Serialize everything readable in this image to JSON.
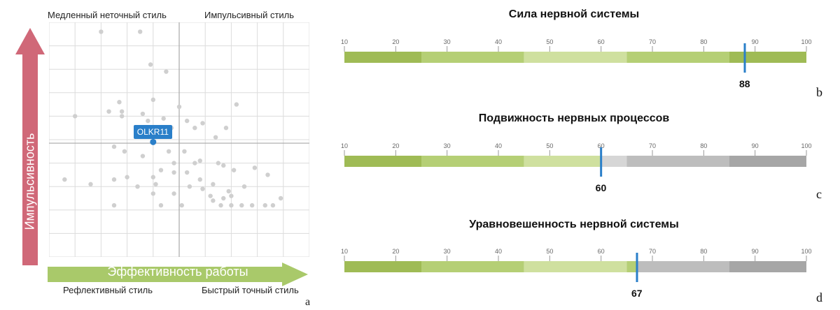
{
  "chart_data": [
    {
      "type": "scatter",
      "panel": "a",
      "xlabel": "Эффективность работы",
      "ylabel": "Импульсивность",
      "quadrant_labels": {
        "top_left": "Медленный неточный стиль",
        "top_right": "Импульсивный стиль",
        "bottom_left": "Рефлективный стиль",
        "bottom_right": "Быстрый точный стиль"
      },
      "highlight": {
        "label": "OLKR11",
        "x": 40,
        "y": 49
      },
      "points": [
        [
          20,
          96
        ],
        [
          35,
          96
        ],
        [
          39,
          82
        ],
        [
          45,
          79
        ],
        [
          27,
          66
        ],
        [
          28,
          60
        ],
        [
          40,
          67
        ],
        [
          50,
          64
        ],
        [
          23,
          62
        ],
        [
          36,
          61
        ],
        [
          44,
          59
        ],
        [
          38,
          58
        ],
        [
          53,
          58
        ],
        [
          59,
          57
        ],
        [
          10,
          60
        ],
        [
          28,
          62
        ],
        [
          72,
          65
        ],
        [
          39,
          54
        ],
        [
          47,
          55
        ],
        [
          56,
          55
        ],
        [
          64,
          51
        ],
        [
          68,
          55
        ],
        [
          35,
          52
        ],
        [
          25,
          47
        ],
        [
          46,
          45
        ],
        [
          52,
          45
        ],
        [
          29,
          45
        ],
        [
          36,
          43
        ],
        [
          58,
          41
        ],
        [
          48,
          40
        ],
        [
          56,
          40
        ],
        [
          65,
          40
        ],
        [
          71,
          37
        ],
        [
          67,
          39
        ],
        [
          79,
          38
        ],
        [
          43,
          37
        ],
        [
          30,
          34
        ],
        [
          48,
          36
        ],
        [
          53,
          36
        ],
        [
          40,
          34
        ],
        [
          16,
          31
        ],
        [
          25,
          33
        ],
        [
          58,
          33
        ],
        [
          6,
          33
        ],
        [
          63,
          31
        ],
        [
          34,
          30
        ],
        [
          41,
          31
        ],
        [
          84,
          35
        ],
        [
          75,
          30
        ],
        [
          54,
          30
        ],
        [
          59,
          29
        ],
        [
          69,
          28
        ],
        [
          48,
          27
        ],
        [
          40,
          27
        ],
        [
          62,
          26
        ],
        [
          67,
          25
        ],
        [
          70,
          26
        ],
        [
          89,
          25
        ],
        [
          74,
          22
        ],
        [
          63,
          24
        ],
        [
          51,
          22
        ],
        [
          25,
          22
        ],
        [
          66,
          22
        ],
        [
          70,
          22
        ],
        [
          78,
          22
        ],
        [
          83,
          22
        ],
        [
          43,
          22
        ],
        [
          86,
          22
        ]
      ]
    },
    {
      "type": "bar",
      "panel": "b",
      "title": "Сила нервной системы",
      "ticks": [
        10,
        20,
        30,
        40,
        50,
        60,
        70,
        80,
        90,
        100
      ],
      "min": 10,
      "max": 100,
      "segments": [
        {
          "from": 10,
          "to": 25,
          "color": "#9fbb55"
        },
        {
          "from": 25,
          "to": 45,
          "color": "#b5cf75"
        },
        {
          "from": 45,
          "to": 65,
          "color": "#cfe09f"
        },
        {
          "from": 65,
          "to": 85,
          "color": "#b5cf75"
        },
        {
          "from": 85,
          "to": 100,
          "color": "#9fbb55"
        }
      ],
      "value": 88,
      "value_label": "88",
      "letter": "b"
    },
    {
      "type": "bar",
      "panel": "c",
      "title": "Подвижность нервных процессов",
      "ticks": [
        10,
        20,
        30,
        40,
        50,
        60,
        70,
        80,
        90,
        100
      ],
      "min": 10,
      "max": 100,
      "segments": [
        {
          "from": 10,
          "to": 25,
          "color": "#9fbb55"
        },
        {
          "from": 25,
          "to": 45,
          "color": "#b5cf75"
        },
        {
          "from": 45,
          "to": 60,
          "color": "#cfe09f"
        },
        {
          "from": 60,
          "to": 65,
          "color": "#d6d6d6"
        },
        {
          "from": 65,
          "to": 85,
          "color": "#bdbdbd"
        },
        {
          "from": 85,
          "to": 100,
          "color": "#a6a6a6"
        }
      ],
      "value": 60,
      "value_label": "60",
      "letter": "c"
    },
    {
      "type": "bar",
      "panel": "d",
      "title": "Уравновешенность нервной системы",
      "ticks": [
        10,
        20,
        30,
        40,
        50,
        60,
        70,
        80,
        90,
        100
      ],
      "min": 10,
      "max": 100,
      "segments": [
        {
          "from": 10,
          "to": 25,
          "color": "#9fbb55"
        },
        {
          "from": 25,
          "to": 45,
          "color": "#b5cf75"
        },
        {
          "from": 45,
          "to": 65,
          "color": "#cfe09f"
        },
        {
          "from": 65,
          "to": 67,
          "color": "#b5cf75"
        },
        {
          "from": 67,
          "to": 85,
          "color": "#bdbdbd"
        },
        {
          "from": 85,
          "to": 100,
          "color": "#a6a6a6"
        }
      ],
      "value": 67,
      "value_label": "67",
      "letter": "d"
    }
  ],
  "caption_letter_a": "a",
  "colors": {
    "marker": "#2a7fc9",
    "y_arrow": "#d06878",
    "x_arrow": "#a9c96a",
    "points": "#cfcfcf",
    "grid": "#dcdcdc"
  }
}
